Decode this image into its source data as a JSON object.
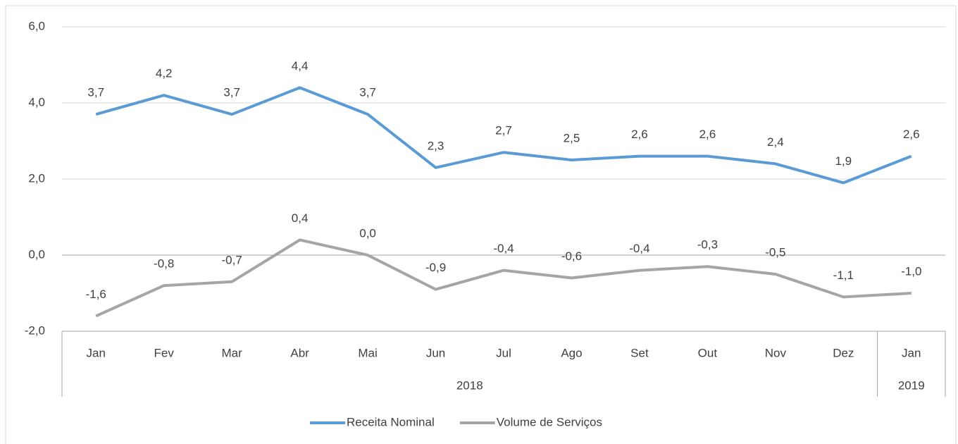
{
  "chart_data": {
    "type": "line",
    "categories": [
      "Jan",
      "Fev",
      "Mar",
      "Abr",
      "Mai",
      "Jun",
      "Jul",
      "Ago",
      "Set",
      "Out",
      "Nov",
      "Dez",
      "Jan"
    ],
    "category_groups": [
      {
        "label": "2018",
        "count": 12
      },
      {
        "label": "2019",
        "count": 1
      }
    ],
    "series": [
      {
        "name": "Receita Nominal",
        "color": "#5b9bd5",
        "values": [
          3.7,
          4.2,
          3.7,
          4.4,
          3.7,
          2.3,
          2.7,
          2.5,
          2.6,
          2.6,
          2.4,
          1.9,
          2.6
        ],
        "value_labels": [
          "3,7",
          "4,2",
          "3,7",
          "4,4",
          "3,7",
          "2,3",
          "2,7",
          "2,5",
          "2,6",
          "2,6",
          "2,4",
          "1,9",
          "2,6"
        ]
      },
      {
        "name": "Volume de Serviços",
        "color": "#a5a5a5",
        "values": [
          -1.6,
          -0.8,
          -0.7,
          0.4,
          0.0,
          -0.9,
          -0.4,
          -0.6,
          -0.4,
          -0.3,
          -0.5,
          -1.1,
          -1.0
        ],
        "value_labels": [
          "-1,6",
          "-0,8",
          "-0,7",
          "0,4",
          "0,0",
          "-0,9",
          "-0,4",
          "-0,6",
          "-0,4",
          "-0,3",
          "-0,5",
          "-1,1",
          "-1,0"
        ]
      }
    ],
    "ylim": [
      -2,
      6
    ],
    "yticks": [
      {
        "value": -2,
        "label": "-2,0"
      },
      {
        "value": 0,
        "label": "0,0"
      },
      {
        "value": 2,
        "label": "2,0"
      },
      {
        "value": 4,
        "label": "4,0"
      },
      {
        "value": 6,
        "label": "6,0"
      }
    ],
    "grid": true,
    "legend": "bottom"
  }
}
